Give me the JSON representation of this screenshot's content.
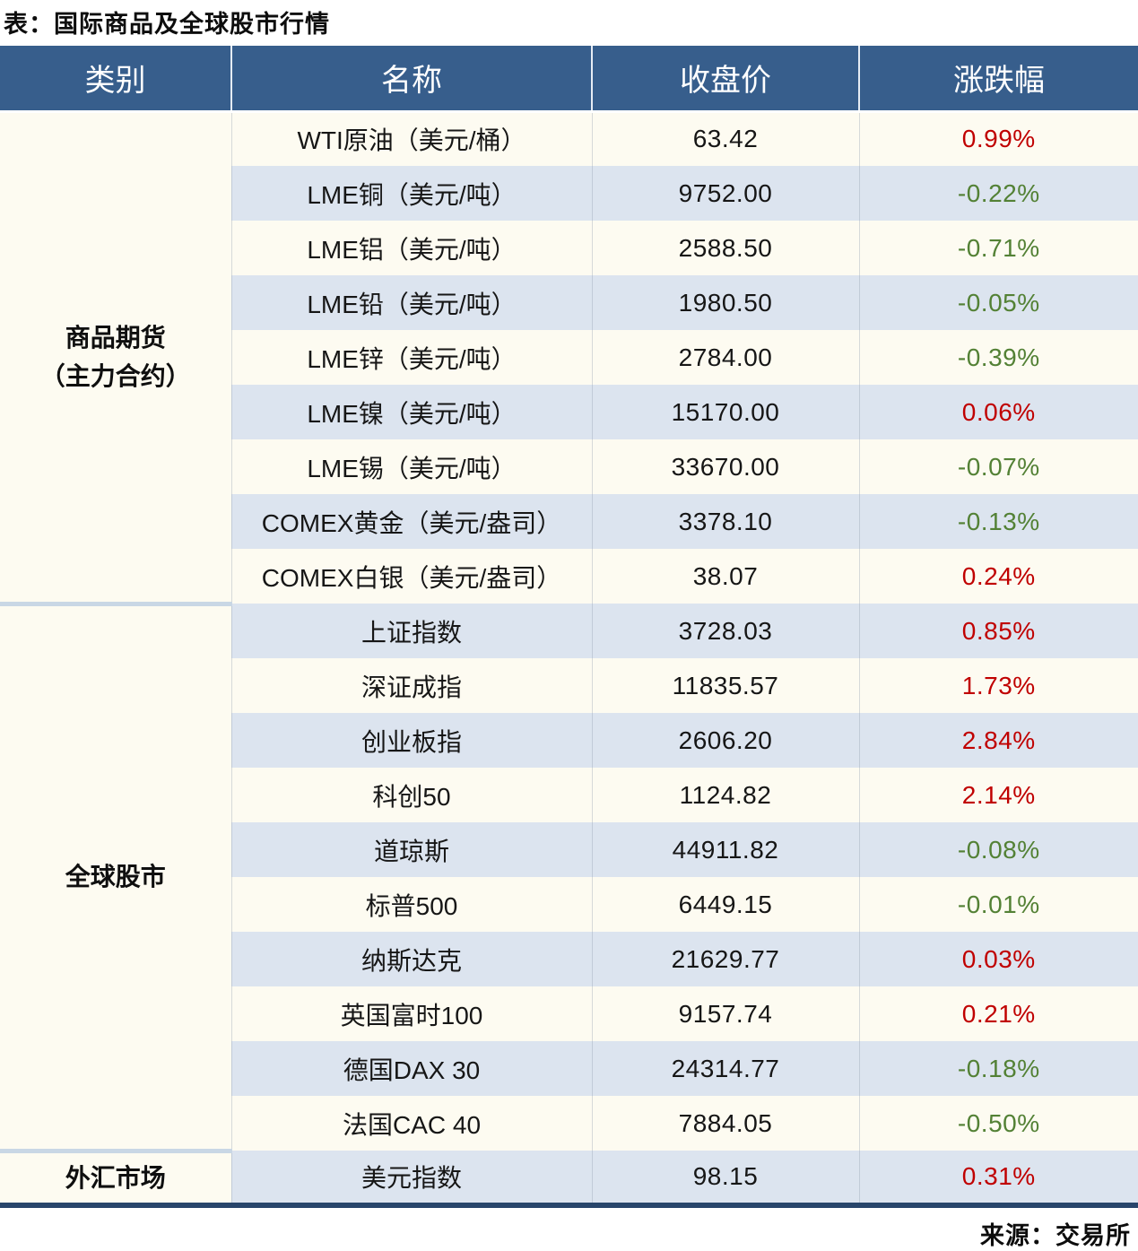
{
  "title": "表：国际商品及全球股市行情",
  "source": "来源：交易所",
  "colors": {
    "header_bg": "#375E8C",
    "row_cream": "#FDFBF1",
    "row_blue": "#DCE4EF",
    "up_red": "#C00000",
    "down_green": "#538135",
    "category_divider": "#C9D7E5",
    "bottom_border": "#28456B"
  },
  "table": {
    "headers": [
      "类别",
      "名称",
      "收盘价",
      "涨跌幅"
    ],
    "groups": [
      {
        "category_lines": [
          "商品期货",
          "（主力合约）"
        ],
        "rows": [
          {
            "name": "WTI原油（美元/桶）",
            "close": "63.42",
            "change": "0.99%",
            "dir": "up"
          },
          {
            "name": "LME铜（美元/吨）",
            "close": "9752.00",
            "change": "-0.22%",
            "dir": "down"
          },
          {
            "name": "LME铝（美元/吨）",
            "close": "2588.50",
            "change": "-0.71%",
            "dir": "down"
          },
          {
            "name": "LME铅（美元/吨）",
            "close": "1980.50",
            "change": "-0.05%",
            "dir": "down"
          },
          {
            "name": "LME锌（美元/吨）",
            "close": "2784.00",
            "change": "-0.39%",
            "dir": "down"
          },
          {
            "name": "LME镍（美元/吨）",
            "close": "15170.00",
            "change": "0.06%",
            "dir": "up"
          },
          {
            "name": "LME锡（美元/吨）",
            "close": "33670.00",
            "change": "-0.07%",
            "dir": "down"
          },
          {
            "name": "COMEX黄金（美元/盎司）",
            "close": "3378.10",
            "change": "-0.13%",
            "dir": "down"
          },
          {
            "name": "COMEX白银（美元/盎司）",
            "close": "38.07",
            "change": "0.24%",
            "dir": "up"
          }
        ]
      },
      {
        "category_lines": [
          "全球股市"
        ],
        "rows": [
          {
            "name": "上证指数",
            "close": "3728.03",
            "change": "0.85%",
            "dir": "up"
          },
          {
            "name": "深证成指",
            "close": "11835.57",
            "change": "1.73%",
            "dir": "up"
          },
          {
            "name": "创业板指",
            "close": "2606.20",
            "change": "2.84%",
            "dir": "up"
          },
          {
            "name": "科创50",
            "close": "1124.82",
            "change": "2.14%",
            "dir": "up"
          },
          {
            "name": "道琼斯",
            "close": "44911.82",
            "change": "-0.08%",
            "dir": "down"
          },
          {
            "name": "标普500",
            "close": "6449.15",
            "change": "-0.01%",
            "dir": "down"
          },
          {
            "name": "纳斯达克",
            "close": "21629.77",
            "change": "0.03%",
            "dir": "up"
          },
          {
            "name": "英国富时100",
            "close": "9157.74",
            "change": "0.21%",
            "dir": "up"
          },
          {
            "name": "德国DAX 30",
            "close": "24314.77",
            "change": "-0.18%",
            "dir": "down"
          },
          {
            "name": "法国CAC 40",
            "close": "7884.05",
            "change": "-0.50%",
            "dir": "down"
          }
        ]
      },
      {
        "category_lines": [
          "外汇市场"
        ],
        "rows": [
          {
            "name": "美元指数",
            "close": "98.15",
            "change": "0.31%",
            "dir": "up"
          }
        ]
      }
    ]
  },
  "chart_data": {
    "type": "table",
    "title": "表：国际商品及全球股市行情",
    "columns": [
      "类别",
      "名称",
      "收盘价",
      "涨跌幅"
    ],
    "rows": [
      [
        "商品期货（主力合约）",
        "WTI原油（美元/桶）",
        63.42,
        "0.99%"
      ],
      [
        "商品期货（主力合约）",
        "LME铜（美元/吨）",
        9752.0,
        "-0.22%"
      ],
      [
        "商品期货（主力合约）",
        "LME铝（美元/吨）",
        2588.5,
        "-0.71%"
      ],
      [
        "商品期货（主力合约）",
        "LME铅（美元/吨）",
        1980.5,
        "-0.05%"
      ],
      [
        "商品期货（主力合约）",
        "LME锌（美元/吨）",
        2784.0,
        "-0.39%"
      ],
      [
        "商品期货（主力合约）",
        "LME镍（美元/吨）",
        15170.0,
        "0.06%"
      ],
      [
        "商品期货（主力合约）",
        "LME锡（美元/吨）",
        33670.0,
        "-0.07%"
      ],
      [
        "商品期货（主力合约）",
        "COMEX黄金（美元/盎司）",
        3378.1,
        "-0.13%"
      ],
      [
        "商品期货（主力合约）",
        "COMEX白银（美元/盎司）",
        38.07,
        "0.24%"
      ],
      [
        "全球股市",
        "上证指数",
        3728.03,
        "0.85%"
      ],
      [
        "全球股市",
        "深证成指",
        11835.57,
        "1.73%"
      ],
      [
        "全球股市",
        "创业板指",
        2606.2,
        "2.84%"
      ],
      [
        "全球股市",
        "科创50",
        1124.82,
        "2.14%"
      ],
      [
        "全球股市",
        "道琼斯",
        44911.82,
        "-0.08%"
      ],
      [
        "全球股市",
        "标普500",
        6449.15,
        "-0.01%"
      ],
      [
        "全球股市",
        "纳斯达克",
        21629.77,
        "0.03%"
      ],
      [
        "全球股市",
        "英国富时100",
        9157.74,
        "0.21%"
      ],
      [
        "全球股市",
        "德国DAX 30",
        24314.77,
        "-0.18%"
      ],
      [
        "全球股市",
        "法国CAC 40",
        7884.05,
        "-0.50%"
      ],
      [
        "外汇市场",
        "美元指数",
        98.15,
        "0.31%"
      ]
    ],
    "legend_note": "red = 上涨(up), green = 下跌(down)"
  }
}
